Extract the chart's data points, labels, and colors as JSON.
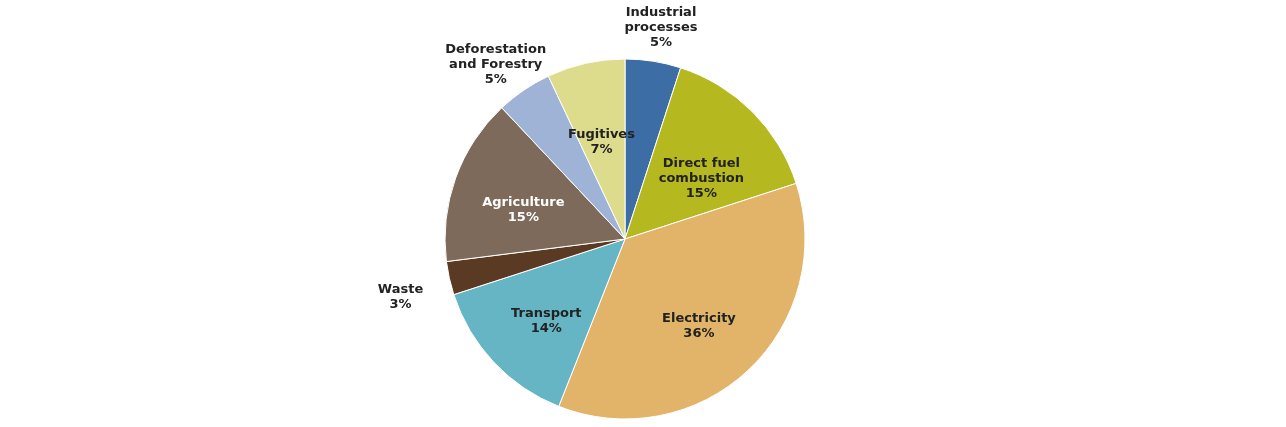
{
  "chart_data": {
    "type": "pie",
    "categories": [
      "Industrial processes",
      "Direct fuel combustion",
      "Electricity",
      "Transport",
      "Waste",
      "Agriculture",
      "Deforestation and Forestry",
      "Fugitives"
    ],
    "values": [
      5,
      15,
      36,
      14,
      3,
      15,
      5,
      7
    ],
    "value_labels": [
      "5%",
      "15%",
      "36%",
      "14%",
      "3%",
      "15%",
      "5%",
      "7%"
    ],
    "colors": [
      "#3c6ea5",
      "#b5b81e",
      "#e1b46a",
      "#66b5c4",
      "#5a3a22",
      "#7d6a5a",
      "#9fb3d6",
      "#dcdc8c"
    ],
    "legend": false
  }
}
